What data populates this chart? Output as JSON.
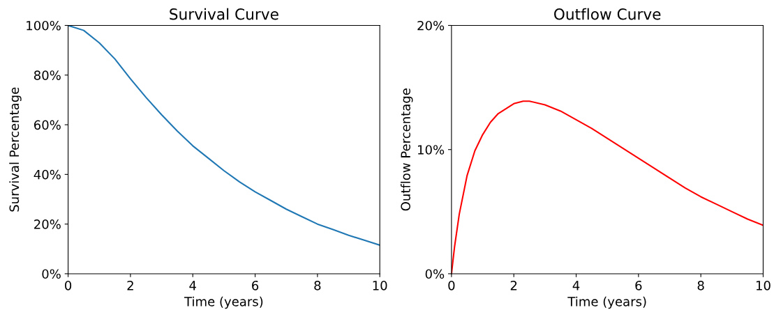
{
  "chart_data": [
    {
      "type": "line",
      "title": "Survival Curve",
      "xlabel": "Time (years)",
      "ylabel": "Survival Percentage",
      "x": [
        0,
        0.5,
        1,
        1.5,
        2,
        2.5,
        3,
        3.5,
        4,
        4.5,
        5,
        5.5,
        6,
        6.5,
        7,
        7.5,
        8,
        8.5,
        9,
        9.5,
        10
      ],
      "series": [
        {
          "color": "#1f77b4",
          "values": [
            100,
            98,
            93,
            86.5,
            78.5,
            71,
            64,
            57.5,
            51.5,
            46.5,
            41.5,
            37,
            33,
            29.5,
            26,
            23,
            20,
            17.8,
            15.5,
            13.5,
            11.5
          ]
        }
      ],
      "xlim": [
        0,
        10
      ],
      "xticks": [
        0,
        2,
        4,
        6,
        8,
        10
      ],
      "ylim": [
        0,
        100
      ],
      "yticks": [
        {
          "value": 0,
          "label": "0%"
        },
        {
          "value": 20,
          "label": "20%"
        },
        {
          "value": 40,
          "label": "40%"
        },
        {
          "value": 60,
          "label": "60%"
        },
        {
          "value": 80,
          "label": "80%"
        },
        {
          "value": 100,
          "label": "100%"
        }
      ],
      "grid": false,
      "legend": false
    },
    {
      "type": "line",
      "title": "Outflow Curve",
      "xlabel": "Time (years)",
      "ylabel": "Outflow Percentage",
      "x": [
        0,
        0.1,
        0.25,
        0.5,
        0.75,
        1,
        1.25,
        1.5,
        2,
        2.3,
        2.5,
        3,
        3.5,
        4,
        4.5,
        5,
        5.5,
        6,
        6.5,
        7,
        7.5,
        8,
        8.5,
        9,
        9.5,
        10
      ],
      "series": [
        {
          "color": "#ff0000",
          "values": [
            0,
            2.2,
            4.8,
            7.9,
            9.9,
            11.2,
            12.2,
            12.9,
            13.7,
            13.9,
            13.9,
            13.6,
            13.1,
            12.4,
            11.7,
            10.9,
            10.1,
            9.3,
            8.5,
            7.7,
            6.9,
            6.2,
            5.6,
            5.0,
            4.4,
            3.9
          ]
        }
      ],
      "xlim": [
        0,
        10
      ],
      "xticks": [
        0,
        2,
        4,
        6,
        8,
        10
      ],
      "ylim": [
        0,
        20
      ],
      "yticks": [
        {
          "value": 0,
          "label": "0%"
        },
        {
          "value": 10,
          "label": "10%"
        },
        {
          "value": 20,
          "label": "20%"
        }
      ],
      "grid": false,
      "legend": false
    }
  ]
}
